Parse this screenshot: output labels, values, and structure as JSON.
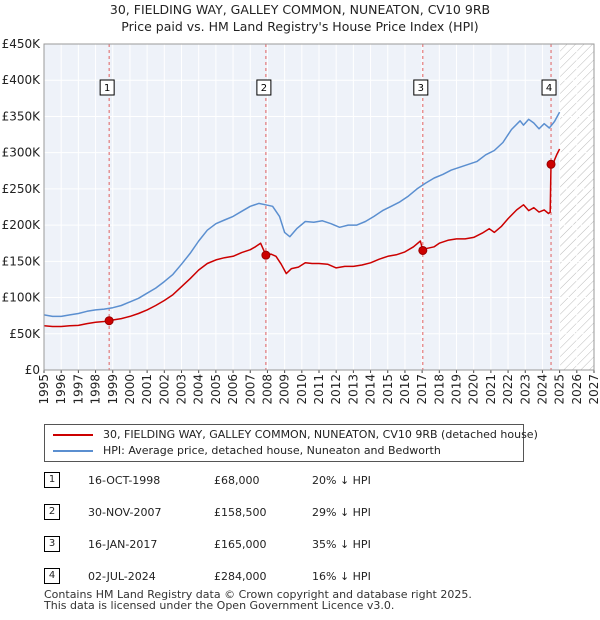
{
  "header": {
    "title": "30, FIELDING WAY, GALLEY COMMON, NUNEATON, CV10 9RB",
    "subtitle": "Price paid vs. HM Land Registry's House Price Index (HPI)"
  },
  "chart_data": {
    "type": "line",
    "xlim": [
      1995,
      2027
    ],
    "ylim": [
      0,
      450000
    ],
    "x_ticks": [
      "1995",
      "1996",
      "1997",
      "1998",
      "1999",
      "2000",
      "2001",
      "2002",
      "2003",
      "2004",
      "2005",
      "2006",
      "2007",
      "2008",
      "2009",
      "2010",
      "2011",
      "2012",
      "2013",
      "2014",
      "2015",
      "2016",
      "2017",
      "2018",
      "2019",
      "2020",
      "2021",
      "2022",
      "2023",
      "2024",
      "2025",
      "2026",
      "2027"
    ],
    "y_ticks": [
      {
        "value": 0,
        "label": "£0"
      },
      {
        "value": 50000,
        "label": "£50K"
      },
      {
        "value": 100000,
        "label": "£100K"
      },
      {
        "value": 150000,
        "label": "£150K"
      },
      {
        "value": 200000,
        "label": "£200K"
      },
      {
        "value": 250000,
        "label": "£250K"
      },
      {
        "value": 300000,
        "label": "£300K"
      },
      {
        "value": 350000,
        "label": "£350K"
      },
      {
        "value": 400000,
        "label": "£400K"
      },
      {
        "value": 450000,
        "label": "£450K"
      }
    ],
    "future_hatch_from": 2025.0,
    "series": [
      {
        "name": "30, FIELDING WAY, GALLEY COMMON, NUNEATON, CV10 9RB (detached house)",
        "color": "#cc0000",
        "points": [
          [
            1995.0,
            61000
          ],
          [
            1995.5,
            60000
          ],
          [
            1996.0,
            60000
          ],
          [
            1996.5,
            61000
          ],
          [
            1997.0,
            61500
          ],
          [
            1997.5,
            64000
          ],
          [
            1998.0,
            66000
          ],
          [
            1998.5,
            67000
          ],
          [
            1998.79,
            68000
          ],
          [
            1999.0,
            69000
          ],
          [
            1999.5,
            71000
          ],
          [
            2000.0,
            74000
          ],
          [
            2000.5,
            78000
          ],
          [
            2001.0,
            83000
          ],
          [
            2001.5,
            89000
          ],
          [
            2002.0,
            96000
          ],
          [
            2002.5,
            104000
          ],
          [
            2003.0,
            115000
          ],
          [
            2003.5,
            126000
          ],
          [
            2004.0,
            138000
          ],
          [
            2004.5,
            147000
          ],
          [
            2005.0,
            152000
          ],
          [
            2005.5,
            155000
          ],
          [
            2006.0,
            157000
          ],
          [
            2006.5,
            162000
          ],
          [
            2007.0,
            166000
          ],
          [
            2007.3,
            170000
          ],
          [
            2007.6,
            175000
          ],
          [
            2007.91,
            158500
          ],
          [
            2008.2,
            160000
          ],
          [
            2008.5,
            157000
          ],
          [
            2008.8,
            146000
          ],
          [
            2009.1,
            133000
          ],
          [
            2009.4,
            140000
          ],
          [
            2009.8,
            142000
          ],
          [
            2010.2,
            148000
          ],
          [
            2010.6,
            147000
          ],
          [
            2011.0,
            147000
          ],
          [
            2011.5,
            146000
          ],
          [
            2012.0,
            141000
          ],
          [
            2012.5,
            143000
          ],
          [
            2013.0,
            143000
          ],
          [
            2013.5,
            145000
          ],
          [
            2014.0,
            148000
          ],
          [
            2014.5,
            153000
          ],
          [
            2015.0,
            157000
          ],
          [
            2015.5,
            159000
          ],
          [
            2016.0,
            163000
          ],
          [
            2016.5,
            170000
          ],
          [
            2016.9,
            178000
          ],
          [
            2017.04,
            165000
          ],
          [
            2017.3,
            168000
          ],
          [
            2017.7,
            170000
          ],
          [
            2018.0,
            175000
          ],
          [
            2018.5,
            179000
          ],
          [
            2019.0,
            181000
          ],
          [
            2019.5,
            181000
          ],
          [
            2020.0,
            183000
          ],
          [
            2020.5,
            189000
          ],
          [
            2020.9,
            195000
          ],
          [
            2021.2,
            190000
          ],
          [
            2021.6,
            198000
          ],
          [
            2022.0,
            209000
          ],
          [
            2022.5,
            221000
          ],
          [
            2022.9,
            228000
          ],
          [
            2023.2,
            220000
          ],
          [
            2023.5,
            224000
          ],
          [
            2023.8,
            218000
          ],
          [
            2024.1,
            221000
          ],
          [
            2024.35,
            216000
          ],
          [
            2024.45,
            218000
          ],
          [
            2024.5,
            284000
          ],
          [
            2024.6,
            280000
          ],
          [
            2024.7,
            290000
          ],
          [
            2024.85,
            298000
          ],
          [
            2025.0,
            305000
          ]
        ]
      },
      {
        "name": "HPI: Average price, detached house, Nuneaton and Bedworth",
        "color": "#5b8fd0",
        "points": [
          [
            1995.0,
            76000
          ],
          [
            1995.5,
            74000
          ],
          [
            1996.0,
            74000
          ],
          [
            1996.5,
            76000
          ],
          [
            1997.0,
            78000
          ],
          [
            1997.5,
            81000
          ],
          [
            1998.0,
            83000
          ],
          [
            1998.5,
            84000
          ],
          [
            1999.0,
            86000
          ],
          [
            1999.5,
            89000
          ],
          [
            2000.0,
            94000
          ],
          [
            2000.5,
            99000
          ],
          [
            2001.0,
            106000
          ],
          [
            2001.5,
            113000
          ],
          [
            2002.0,
            122000
          ],
          [
            2002.5,
            132000
          ],
          [
            2003.0,
            146000
          ],
          [
            2003.5,
            161000
          ],
          [
            2004.0,
            178000
          ],
          [
            2004.5,
            193000
          ],
          [
            2005.0,
            202000
          ],
          [
            2005.5,
            207000
          ],
          [
            2006.0,
            212000
          ],
          [
            2006.5,
            219000
          ],
          [
            2007.0,
            226000
          ],
          [
            2007.5,
            230000
          ],
          [
            2007.9,
            228000
          ],
          [
            2008.3,
            226000
          ],
          [
            2008.7,
            212000
          ],
          [
            2009.0,
            190000
          ],
          [
            2009.3,
            184000
          ],
          [
            2009.7,
            195000
          ],
          [
            2010.2,
            205000
          ],
          [
            2010.7,
            204000
          ],
          [
            2011.2,
            206000
          ],
          [
            2011.7,
            202000
          ],
          [
            2012.2,
            197000
          ],
          [
            2012.7,
            200000
          ],
          [
            2013.2,
            200000
          ],
          [
            2013.7,
            205000
          ],
          [
            2014.2,
            212000
          ],
          [
            2014.7,
            220000
          ],
          [
            2015.2,
            226000
          ],
          [
            2015.7,
            232000
          ],
          [
            2016.2,
            240000
          ],
          [
            2016.7,
            250000
          ],
          [
            2017.2,
            258000
          ],
          [
            2017.7,
            265000
          ],
          [
            2018.2,
            270000
          ],
          [
            2018.7,
            276000
          ],
          [
            2019.2,
            280000
          ],
          [
            2019.7,
            284000
          ],
          [
            2020.2,
            288000
          ],
          [
            2020.7,
            297000
          ],
          [
            2021.2,
            303000
          ],
          [
            2021.7,
            314000
          ],
          [
            2022.2,
            332000
          ],
          [
            2022.7,
            344000
          ],
          [
            2022.9,
            338000
          ],
          [
            2023.2,
            346000
          ],
          [
            2023.5,
            341000
          ],
          [
            2023.8,
            333000
          ],
          [
            2024.1,
            340000
          ],
          [
            2024.4,
            334000
          ],
          [
            2024.7,
            343000
          ],
          [
            2025.0,
            356000
          ]
        ]
      }
    ],
    "transactions": [
      {
        "num": "1",
        "x": 1998.79,
        "price_value": 68000,
        "date": "16-OCT-1998",
        "price": "£68,000",
        "delta": "20% ↓ HPI"
      },
      {
        "num": "2",
        "x": 2007.91,
        "price_value": 158500,
        "date": "30-NOV-2007",
        "price": "£158,500",
        "delta": "29% ↓ HPI"
      },
      {
        "num": "3",
        "x": 2017.04,
        "price_value": 165000,
        "date": "16-JAN-2017",
        "price": "£165,000",
        "delta": "35% ↓ HPI"
      },
      {
        "num": "4",
        "x": 2024.5,
        "price_value": 284000,
        "date": "02-JUL-2024",
        "price": "£284,000",
        "delta": "16% ↓ HPI"
      }
    ]
  },
  "legend": {
    "items": [
      {
        "label": "30, FIELDING WAY, GALLEY COMMON, NUNEATON, CV10 9RB (detached house)",
        "color": "#cc0000"
      },
      {
        "label": "HPI: Average price, detached house, Nuneaton and Bedworth",
        "color": "#5b8fd0"
      }
    ]
  },
  "footer": {
    "line1": "Contains HM Land Registry data © Crown copyright and database right 2025.",
    "line2": "This data is licensed under the Open Government Licence v3.0."
  }
}
